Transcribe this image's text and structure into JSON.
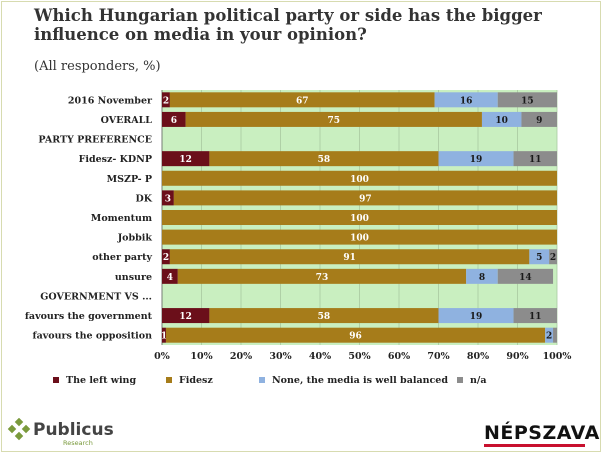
{
  "chart_data": {
    "type": "bar",
    "orientation": "horizontal",
    "stacked": true,
    "title": "Which Hungarian political party or side has the bigger influence on media in your opinion?",
    "subtitle": "(All responders, %)",
    "categories": [
      "2016 November",
      "OVERALL",
      "PARTY PREFERENCE",
      "Fidesz- KDNP",
      "MSZP- P",
      "DK",
      "Momentum",
      "Jobbik",
      "other party",
      "unsure",
      "GOVERNMENT VS ...",
      "favours the government",
      "favours the opposition"
    ],
    "series": [
      {
        "name": "The left wing",
        "color": "#6b0f1a",
        "values": [
          2,
          6,
          null,
          12,
          0,
          3,
          0,
          0,
          2,
          4,
          null,
          12,
          1
        ]
      },
      {
        "name": "Fidesz",
        "color": "#a67c1a",
        "values": [
          67,
          75,
          null,
          58,
          100,
          97,
          100,
          100,
          91,
          73,
          null,
          58,
          96
        ]
      },
      {
        "name": "None, the media is well balanced",
        "color": "#8fb2e0",
        "values": [
          16,
          10,
          null,
          19,
          0,
          0,
          0,
          0,
          5,
          8,
          null,
          19,
          2
        ]
      },
      {
        "name": "n/a",
        "color": "#8c8c8c",
        "values": [
          15,
          9,
          null,
          11,
          0,
          0,
          0,
          0,
          2,
          14,
          null,
          11,
          1
        ]
      }
    ],
    "data_labels": [
      [
        "2",
        "67",
        "16",
        "15"
      ],
      [
        "6",
        "75",
        "10",
        "9"
      ],
      [
        "",
        "",
        "",
        ""
      ],
      [
        "12",
        "58",
        "19",
        "11"
      ],
      [
        "",
        "100",
        "",
        ""
      ],
      [
        "3",
        "97",
        "",
        ""
      ],
      [
        "",
        "100",
        "",
        ""
      ],
      [
        "",
        "100",
        "",
        ""
      ],
      [
        "2",
        "91",
        "5",
        "2"
      ],
      [
        "4",
        "73",
        "8",
        "14"
      ],
      [
        "",
        "",
        "",
        ""
      ],
      [
        "12",
        "58",
        "19",
        "11"
      ],
      [
        "1",
        "96",
        "2",
        ""
      ]
    ],
    "xlim": [
      0,
      100
    ],
    "x_ticks": [
      "0%",
      "10%",
      "20%",
      "30%",
      "40%",
      "50%",
      "60%",
      "70%",
      "80%",
      "90%",
      "100%"
    ],
    "grid": true,
    "legend_position": "bottom",
    "plot_background": "#c9efc0"
  },
  "branding": {
    "left_logo": "Publicus",
    "left_logo_sub": "Research",
    "right_logo": "NÉPSZAVA"
  }
}
